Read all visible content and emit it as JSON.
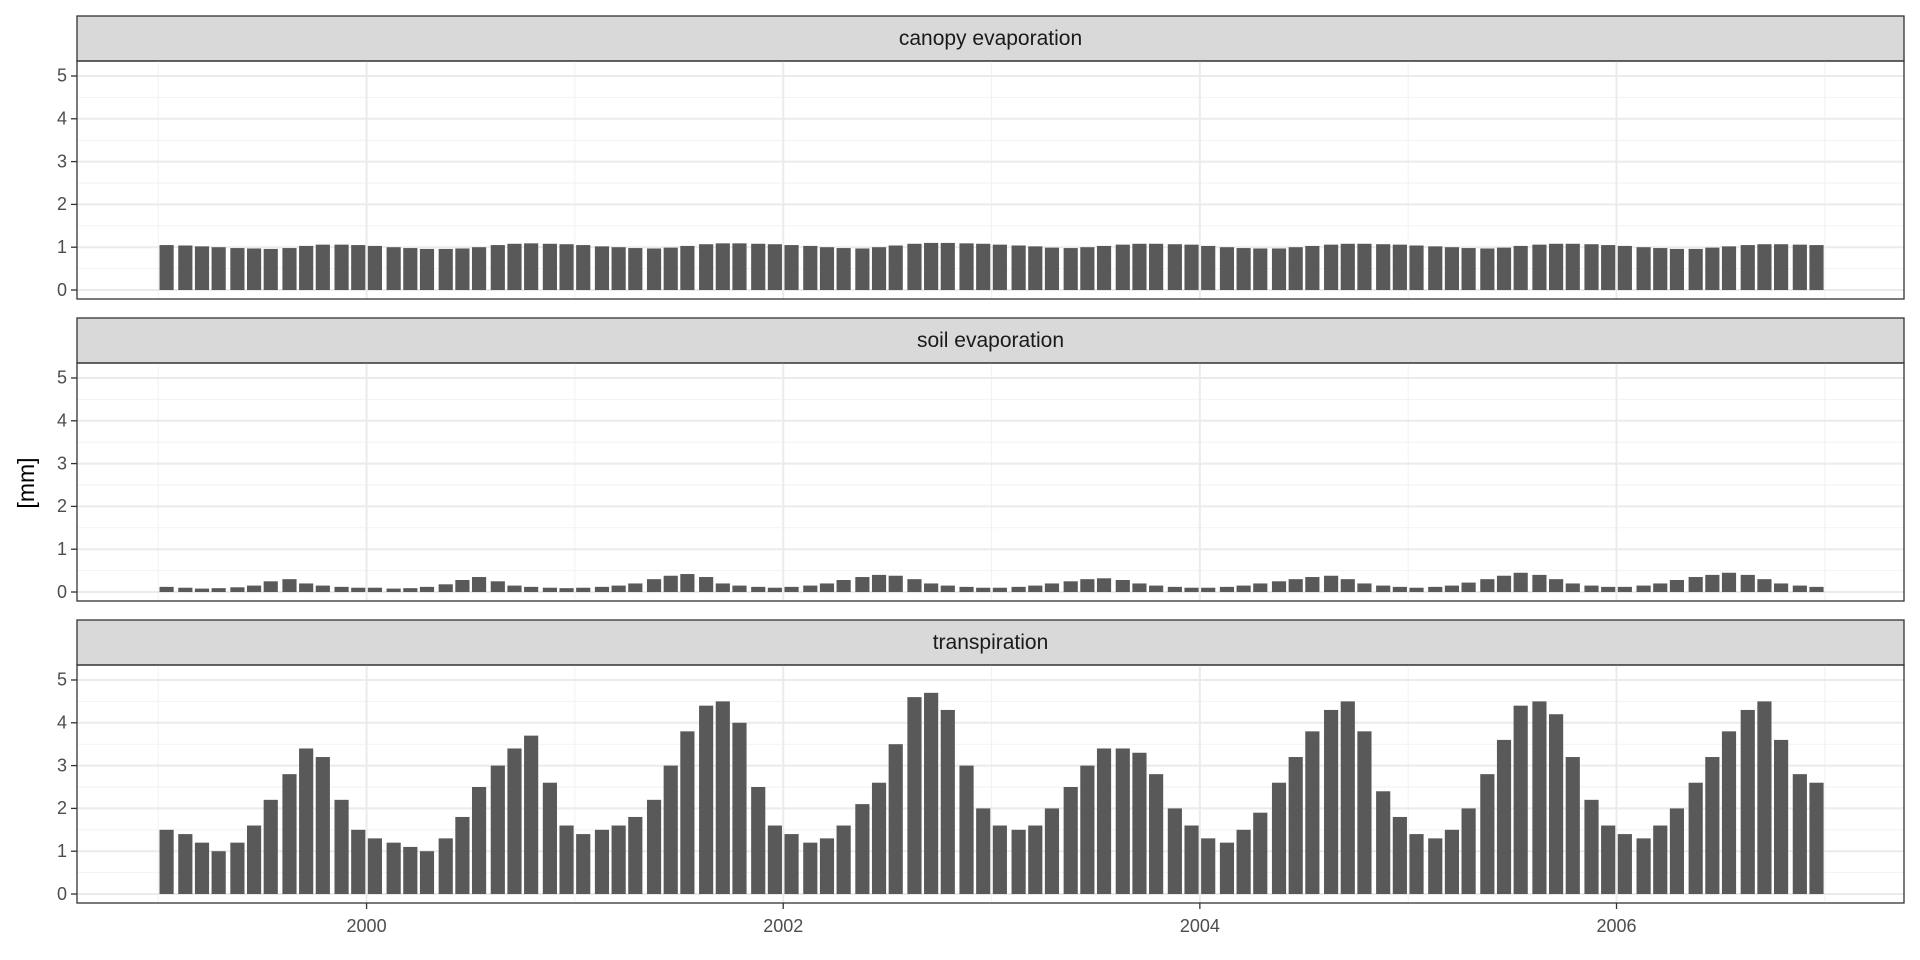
{
  "chart_data": {
    "type": "bar",
    "y_label": "[mm]",
    "color": "#595959",
    "grid": true,
    "x": [
      1999.04,
      1999.13,
      1999.21,
      1999.29,
      1999.38,
      1999.46,
      1999.54,
      1999.63,
      1999.71,
      1999.79,
      1999.88,
      1999.96,
      2000.04,
      2000.13,
      2000.21,
      2000.29,
      2000.38,
      2000.46,
      2000.54,
      2000.63,
      2000.71,
      2000.79,
      2000.88,
      2000.96,
      2001.04,
      2001.13,
      2001.21,
      2001.29,
      2001.38,
      2001.46,
      2001.54,
      2001.63,
      2001.71,
      2001.79,
      2001.88,
      2001.96,
      2002.04,
      2002.13,
      2002.21,
      2002.29,
      2002.38,
      2002.46,
      2002.54,
      2002.63,
      2002.71,
      2002.79,
      2002.88,
      2002.96,
      2003.04,
      2003.13,
      2003.21,
      2003.29,
      2003.38,
      2003.46,
      2003.54,
      2003.63,
      2003.71,
      2003.79,
      2003.88,
      2003.96,
      2004.04,
      2004.13,
      2004.21,
      2004.29,
      2004.38,
      2004.46,
      2004.54,
      2004.63,
      2004.71,
      2004.79,
      2004.88,
      2004.96,
      2005.04,
      2005.13,
      2005.21,
      2005.29,
      2005.38,
      2005.46,
      2005.54,
      2005.63,
      2005.71,
      2005.79,
      2005.88,
      2005.96,
      2006.04,
      2006.13,
      2006.21,
      2006.29,
      2006.38,
      2006.46,
      2006.54,
      2006.63,
      2006.71,
      2006.79,
      2006.88,
      2006.96
    ],
    "xlim": [
      1998.61,
      2007.38
    ],
    "xticks": [
      2000,
      2002,
      2004,
      2006
    ],
    "ylim": [
      -0.21,
      5.35
    ],
    "yticks": [
      0,
      1,
      2,
      3,
      4,
      5
    ],
    "facets": [
      {
        "title": "canopy evaporation",
        "values": [
          1.05,
          1.04,
          1.02,
          1.0,
          0.98,
          0.97,
          0.96,
          0.98,
          1.03,
          1.06,
          1.06,
          1.05,
          1.03,
          1.0,
          0.98,
          0.96,
          0.96,
          0.97,
          1.0,
          1.05,
          1.08,
          1.09,
          1.08,
          1.07,
          1.05,
          1.02,
          1.0,
          0.98,
          0.97,
          0.99,
          1.03,
          1.07,
          1.09,
          1.09,
          1.08,
          1.07,
          1.05,
          1.03,
          1.0,
          0.98,
          0.97,
          1.0,
          1.04,
          1.08,
          1.1,
          1.1,
          1.09,
          1.08,
          1.06,
          1.04,
          1.02,
          0.99,
          0.98,
          1.0,
          1.03,
          1.06,
          1.08,
          1.08,
          1.07,
          1.06,
          1.03,
          1.0,
          0.98,
          0.97,
          0.97,
          1.0,
          1.03,
          1.06,
          1.08,
          1.08,
          1.07,
          1.06,
          1.04,
          1.02,
          1.0,
          0.98,
          0.97,
          0.99,
          1.03,
          1.06,
          1.08,
          1.08,
          1.07,
          1.05,
          1.03,
          1.0,
          0.98,
          0.96,
          0.96,
          0.99,
          1.02,
          1.05,
          1.07,
          1.07,
          1.06,
          1.05
        ]
      },
      {
        "title": "soil evaporation",
        "values": [
          0.12,
          0.1,
          0.08,
          0.09,
          0.11,
          0.15,
          0.25,
          0.3,
          0.2,
          0.15,
          0.12,
          0.1,
          0.1,
          0.08,
          0.09,
          0.12,
          0.18,
          0.28,
          0.35,
          0.25,
          0.15,
          0.12,
          0.1,
          0.09,
          0.1,
          0.12,
          0.15,
          0.2,
          0.3,
          0.38,
          0.42,
          0.35,
          0.2,
          0.15,
          0.12,
          0.1,
          0.12,
          0.15,
          0.2,
          0.28,
          0.35,
          0.4,
          0.38,
          0.3,
          0.2,
          0.15,
          0.12,
          0.1,
          0.1,
          0.12,
          0.15,
          0.2,
          0.25,
          0.3,
          0.32,
          0.28,
          0.2,
          0.15,
          0.12,
          0.1,
          0.1,
          0.12,
          0.15,
          0.2,
          0.25,
          0.3,
          0.35,
          0.38,
          0.3,
          0.2,
          0.15,
          0.12,
          0.1,
          0.12,
          0.15,
          0.22,
          0.3,
          0.38,
          0.45,
          0.4,
          0.3,
          0.2,
          0.15,
          0.12,
          0.12,
          0.15,
          0.2,
          0.28,
          0.35,
          0.4,
          0.45,
          0.4,
          0.3,
          0.2,
          0.15,
          0.12
        ]
      },
      {
        "title": "transpiration",
        "values": [
          1.5,
          1.4,
          1.2,
          1.0,
          1.2,
          1.6,
          2.2,
          2.8,
          3.4,
          3.2,
          2.2,
          1.5,
          1.3,
          1.2,
          1.1,
          1.0,
          1.3,
          1.8,
          2.5,
          3.0,
          3.4,
          3.7,
          2.6,
          1.6,
          1.4,
          1.5,
          1.6,
          1.8,
          2.2,
          3.0,
          3.8,
          4.4,
          4.5,
          4.0,
          2.5,
          1.6,
          1.4,
          1.2,
          1.3,
          1.6,
          2.1,
          2.6,
          3.5,
          4.6,
          4.7,
          4.3,
          3.0,
          2.0,
          1.6,
          1.5,
          1.6,
          2.0,
          2.5,
          3.0,
          3.4,
          3.4,
          3.3,
          2.8,
          2.0,
          1.6,
          1.3,
          1.2,
          1.5,
          1.9,
          2.6,
          3.2,
          3.8,
          4.3,
          4.5,
          3.8,
          2.4,
          1.8,
          1.4,
          1.3,
          1.5,
          2.0,
          2.8,
          3.6,
          4.4,
          4.5,
          4.2,
          3.2,
          2.2,
          1.6,
          1.4,
          1.3,
          1.6,
          2.0,
          2.6,
          3.2,
          3.8,
          4.3,
          4.5,
          3.6,
          2.8,
          2.6
        ]
      }
    ]
  }
}
